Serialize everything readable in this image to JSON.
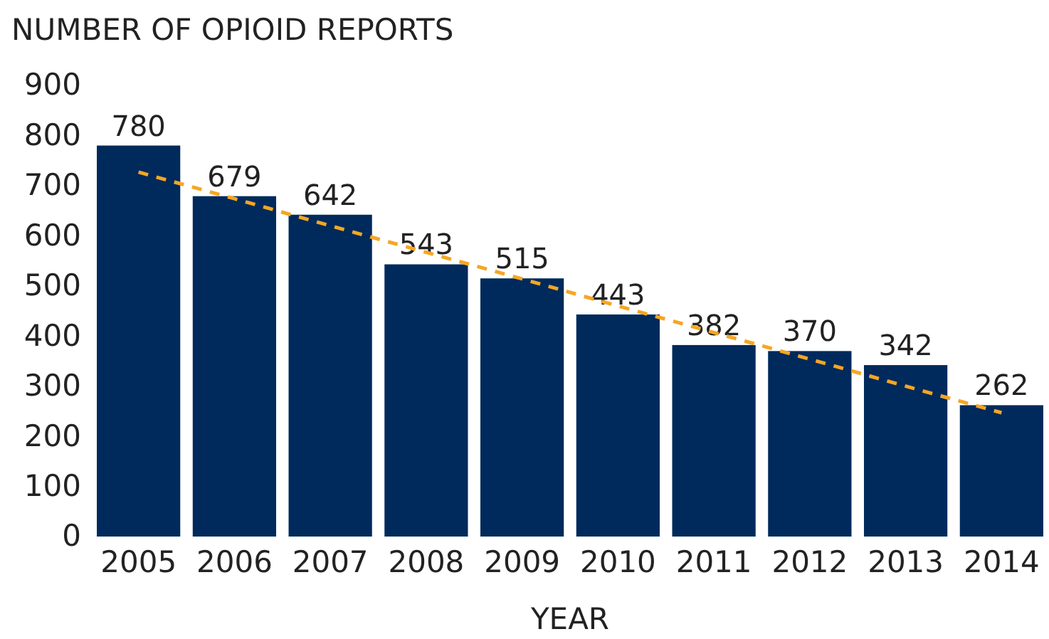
{
  "chart_data": {
    "type": "bar",
    "title": "NUMBER OF OPIOID REPORTS",
    "xlabel": "YEAR",
    "categories": [
      "2005",
      "2006",
      "2007",
      "2008",
      "2009",
      "2010",
      "2011",
      "2012",
      "2013",
      "2014"
    ],
    "series": [
      {
        "color": "#002a5c",
        "values": [
          780,
          679,
          642,
          543,
          515,
          443,
          382,
          370,
          342,
          262
        ],
        "value_labels": [
          "780",
          "679",
          "642",
          "543",
          "515",
          "443",
          "382",
          "370",
          "342",
          "262"
        ]
      },
      {
        "type": "line",
        "color": "#f5a623",
        "line_style": "dashed",
        "values": [
          727,
          674,
          620,
          567,
          514,
          460,
          407,
          354,
          300,
          247
        ]
      }
    ],
    "ylim": [
      0,
      900
    ],
    "yticks": [
      0,
      100,
      200,
      300,
      400,
      500,
      600,
      700,
      800,
      900
    ],
    "grid": false
  }
}
